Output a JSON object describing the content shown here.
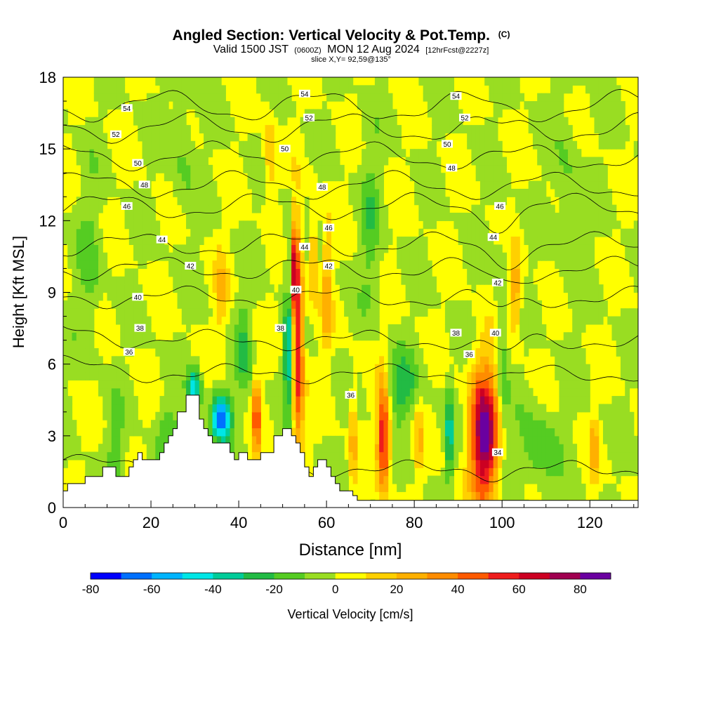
{
  "chart_data": {
    "type": "heatmap",
    "title": "Angled Section: Vertical Velocity & Pot.Temp.",
    "title_mark": "(C)",
    "subtitle_main_a": "Valid 1500 JST",
    "subtitle_small_a": "(0600Z)",
    "subtitle_main_b": "MON 12 Aug 2024",
    "subtitle_small_b": "[12hrFcst@2227z]",
    "slice_label": "slice X,Y= 92,59@135°",
    "xlabel": "Distance [nm]",
    "ylabel": "Height [Kft MSL]",
    "xlim": [
      0,
      131
    ],
    "ylim": [
      0,
      18
    ],
    "x_ticks": [
      0,
      20,
      40,
      60,
      80,
      100,
      120
    ],
    "y_ticks": [
      0,
      3,
      6,
      9,
      12,
      15,
      18
    ],
    "x_tick_labels": [
      "0",
      "20",
      "40",
      "60",
      "80",
      "100",
      "120"
    ],
    "y_tick_labels": [
      "0",
      "3",
      "6",
      "9",
      "12",
      "15",
      "18"
    ],
    "colorbar": {
      "label": "Vertical Velocity [cm/s]",
      "levels": [
        -80,
        -70,
        -60,
        -50,
        -40,
        -30,
        -20,
        -10,
        0,
        10,
        20,
        30,
        40,
        50,
        60,
        70,
        80,
        90
      ],
      "tick_values": [
        -80,
        -60,
        -40,
        -20,
        0,
        20,
        40,
        60,
        80
      ],
      "tick_labels": [
        "-80",
        "-60",
        "-40",
        "-20",
        "0",
        "20",
        "40",
        "60",
        "80"
      ],
      "colors": [
        "#0000ff",
        "#0070ff",
        "#00b4ff",
        "#00e6e6",
        "#00cc99",
        "#22bb44",
        "#55cc22",
        "#99dd22",
        "#ffff00",
        "#ffd000",
        "#ffb000",
        "#ff8c00",
        "#ff5a00",
        "#ee1c1c",
        "#cc0022",
        "#a00050",
        "#6a00a0"
      ]
    },
    "background_level_color": "#ffff00",
    "velocity_features": [
      {
        "x": 96,
        "y": 3.0,
        "max": 85,
        "sx": 2.2,
        "sy": 2.0
      },
      {
        "x": 73,
        "y": 3.0,
        "max": 65,
        "sx": 1.0,
        "sy": 1.6
      },
      {
        "x": 53.5,
        "y": 6.5,
        "max": 62,
        "sx": 0.9,
        "sy": 3.0
      },
      {
        "x": 52.5,
        "y": 10.0,
        "max": 55,
        "sx": 0.7,
        "sy": 1.5
      },
      {
        "x": 44,
        "y": 3.8,
        "max": 55,
        "sx": 0.5,
        "sy": 1.1
      },
      {
        "x": 51.5,
        "y": 6.5,
        "max": -45,
        "sx": 0.9,
        "sy": 1.5
      },
      {
        "x": 51.5,
        "y": 10.5,
        "max": -30,
        "sx": 0.6,
        "sy": 1.5
      },
      {
        "x": 36,
        "y": 3.8,
        "max": -65,
        "sx": 1.5,
        "sy": 0.7
      },
      {
        "x": 30,
        "y": 5.0,
        "max": -45,
        "sx": 1.0,
        "sy": 0.6
      },
      {
        "x": 88,
        "y": 3.0,
        "max": -40,
        "sx": 0.5,
        "sy": 1.4
      },
      {
        "x": 103,
        "y": 9.0,
        "max": 30,
        "sx": 1.0,
        "sy": 1.2
      },
      {
        "x": 121,
        "y": 2.5,
        "max": 25,
        "sx": 0.6,
        "sy": 1.0
      },
      {
        "x": 81,
        "y": 3.0,
        "max": 20,
        "sx": 0.6,
        "sy": 1.2
      },
      {
        "x": 66,
        "y": 3.0,
        "max": 25,
        "sx": 0.6,
        "sy": 1.5
      },
      {
        "x": 60,
        "y": 9.0,
        "max": 25,
        "sx": 0.8,
        "sy": 2.0
      },
      {
        "x": 36,
        "y": 9.0,
        "max": 20,
        "sx": 1.0,
        "sy": 1.2
      },
      {
        "x": 57,
        "y": 10.5,
        "max": 30,
        "sx": 0.6,
        "sy": 1.5
      },
      {
        "x": 47,
        "y": 14.5,
        "max": 20,
        "sx": 1.0,
        "sy": 1.5
      },
      {
        "x": 77,
        "y": 5.0,
        "max": -25,
        "sx": 2.5,
        "sy": 1.0
      },
      {
        "x": 108,
        "y": 2.5,
        "max": -20,
        "sx": 3.0,
        "sy": 1.2
      },
      {
        "x": 100,
        "y": 6.5,
        "max": -18,
        "sx": 1.0,
        "sy": 3.0
      },
      {
        "x": 41,
        "y": 6.5,
        "max": -20,
        "sx": 1.2,
        "sy": 1.5
      },
      {
        "x": 24,
        "y": 3.0,
        "max": -15,
        "sx": 2.0,
        "sy": 1.2
      },
      {
        "x": 12,
        "y": 2.0,
        "max": -15,
        "sx": 1.5,
        "sy": 1.5
      },
      {
        "x": 70,
        "y": 12.0,
        "max": -15,
        "sx": 1.5,
        "sy": 2.5
      },
      {
        "x": 27,
        "y": 15.0,
        "max": -12,
        "sx": 2.0,
        "sy": 2.0
      },
      {
        "x": 115,
        "y": 13.0,
        "max": -12,
        "sx": 2.0,
        "sy": 2.5
      },
      {
        "x": 6,
        "y": 10.0,
        "max": -12,
        "sx": 2.0,
        "sy": 2.5
      }
    ],
    "terrain": {
      "x": [
        0,
        1,
        1,
        5,
        5,
        9,
        9,
        12,
        12,
        15,
        15,
        16,
        16,
        17,
        17,
        18,
        18,
        22,
        22,
        23,
        23,
        24,
        24,
        25,
        25,
        26,
        26,
        28,
        28,
        31,
        31,
        32,
        32,
        33,
        33,
        34,
        34,
        38,
        38,
        39,
        39,
        40,
        40,
        42,
        42,
        45,
        45,
        48,
        48,
        50,
        50,
        52,
        52,
        53,
        53,
        54,
        54,
        55,
        55,
        56,
        56,
        57,
        57,
        58,
        58,
        60,
        60,
        61,
        61,
        62,
        62,
        63,
        63,
        66,
        66,
        67,
        67,
        69,
        69,
        71,
        71,
        131
      ],
      "y": [
        0.7,
        0.7,
        1.0,
        1.0,
        1.3,
        1.3,
        1.7,
        1.7,
        1.3,
        1.3,
        1.7,
        1.7,
        2.0,
        2.0,
        2.3,
        2.3,
        2.0,
        2.0,
        2.3,
        2.3,
        2.7,
        2.7,
        3.0,
        3.0,
        3.3,
        3.3,
        4.0,
        4.0,
        4.7,
        4.7,
        3.7,
        3.7,
        3.3,
        3.3,
        3.0,
        3.0,
        2.7,
        2.7,
        2.3,
        2.3,
        2.0,
        2.0,
        2.3,
        2.3,
        2.0,
        2.0,
        2.3,
        2.3,
        3.0,
        3.0,
        3.3,
        3.3,
        3.0,
        3.0,
        2.7,
        2.7,
        2.3,
        2.3,
        1.7,
        1.7,
        1.3,
        1.3,
        1.7,
        1.7,
        2.0,
        2.0,
        1.7,
        1.7,
        1.3,
        1.3,
        1.0,
        1.0,
        0.7,
        0.7,
        0.5,
        0.5,
        0.3,
        0.3,
        0.3,
        0.3,
        0.3,
        0.3
      ]
    },
    "theta_contours": [
      {
        "value": 34,
        "label": "34",
        "base_y": 1.6
      },
      {
        "value": 36,
        "label": "36",
        "base_y": 5.6
      },
      {
        "value": 38,
        "label": "38",
        "base_y": 7.0
      },
      {
        "value": 40,
        "label": "40",
        "base_y": 8.8
      },
      {
        "value": 42,
        "label": "42",
        "base_y": 10.0
      },
      {
        "value": 44,
        "label": "44",
        "base_y": 11.0
      },
      {
        "value": 46,
        "label": "46",
        "base_y": 12.6
      },
      {
        "value": 48,
        "label": "48",
        "base_y": 13.5
      },
      {
        "value": 50,
        "label": "50",
        "base_y": 14.7
      },
      {
        "value": 52,
        "label": "52",
        "base_y": 15.9
      },
      {
        "value": 54,
        "label": "54",
        "base_y": 16.8
      }
    ],
    "contour_labels": [
      {
        "text": "54",
        "x": 14.5,
        "y": 16.7
      },
      {
        "text": "52",
        "x": 12,
        "y": 15.6
      },
      {
        "text": "50",
        "x": 17,
        "y": 14.4
      },
      {
        "text": "48",
        "x": 18.5,
        "y": 13.5
      },
      {
        "text": "46",
        "x": 14.5,
        "y": 12.6
      },
      {
        "text": "44",
        "x": 22.5,
        "y": 11.2
      },
      {
        "text": "42",
        "x": 29,
        "y": 10.1
      },
      {
        "text": "40",
        "x": 17,
        "y": 8.8
      },
      {
        "text": "38",
        "x": 17.5,
        "y": 7.5
      },
      {
        "text": "36",
        "x": 15,
        "y": 6.5
      },
      {
        "text": "54",
        "x": 55,
        "y": 17.3
      },
      {
        "text": "52",
        "x": 56,
        "y": 16.3
      },
      {
        "text": "50",
        "x": 50.5,
        "y": 15.0
      },
      {
        "text": "48",
        "x": 59,
        "y": 13.4
      },
      {
        "text": "46",
        "x": 60.5,
        "y": 11.7
      },
      {
        "text": "44",
        "x": 55,
        "y": 10.9
      },
      {
        "text": "42",
        "x": 60.5,
        "y": 10.1
      },
      {
        "text": "40",
        "x": 53,
        "y": 9.1
      },
      {
        "text": "38",
        "x": 49.5,
        "y": 7.5
      },
      {
        "text": "54",
        "x": 89.5,
        "y": 17.2
      },
      {
        "text": "52",
        "x": 91.5,
        "y": 16.3
      },
      {
        "text": "50",
        "x": 87.5,
        "y": 15.2
      },
      {
        "text": "48",
        "x": 88.5,
        "y": 14.2
      },
      {
        "text": "46",
        "x": 99.5,
        "y": 12.6
      },
      {
        "text": "44",
        "x": 98,
        "y": 11.3
      },
      {
        "text": "42",
        "x": 99,
        "y": 9.4
      },
      {
        "text": "40",
        "x": 98.5,
        "y": 7.3
      },
      {
        "text": "38",
        "x": 89.5,
        "y": 7.3
      },
      {
        "text": "36",
        "x": 92.5,
        "y": 6.4
      },
      {
        "text": "36",
        "x": 65.5,
        "y": 4.7
      },
      {
        "text": "34",
        "x": 99,
        "y": 2.3
      }
    ]
  }
}
